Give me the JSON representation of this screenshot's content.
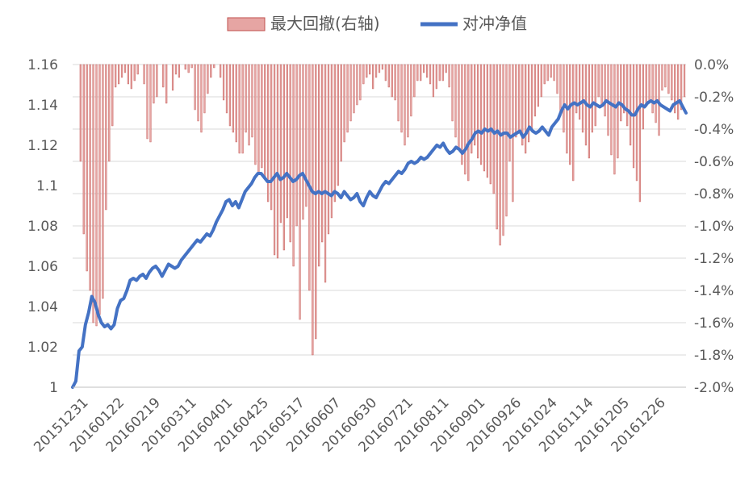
{
  "legend": {
    "drawdown_label": "最大回撤(右轴)",
    "nav_label": "对冲净值"
  },
  "colors": {
    "drawdown": "#c0504d",
    "drawdown_fill": "#e6a5a3",
    "nav_line": "#4472c4",
    "grid": "#d9d9d9",
    "text": "#595959"
  },
  "chart_data": {
    "type": "bar+line",
    "legend_position": "top-center",
    "grid": true,
    "x_axis": {
      "tick_labels": [
        "20151231",
        "20160122",
        "20160219",
        "20160311",
        "20160401",
        "20160425",
        "20160517",
        "20160607",
        "20160630",
        "20160721",
        "20160811",
        "20160901",
        "20160926",
        "20161024",
        "20161114",
        "20161205",
        "20161226"
      ]
    },
    "y_left": {
      "ylim": [
        1.0,
        1.16
      ],
      "tick_labels": [
        "1.16",
        "1.14",
        "1.12",
        "1.1",
        "1.08",
        "1.06",
        "1.04",
        "1.02",
        "1"
      ]
    },
    "y_right": {
      "ylim": [
        -2.0,
        0.0
      ],
      "unit": "%",
      "tick_labels": [
        "0.0%",
        "-0.2%",
        "-0.4%",
        "-0.6%",
        "-0.8%",
        "-1.0%",
        "-1.2%",
        "-1.4%",
        "-1.6%",
        "-1.8%",
        "-2.0%"
      ]
    },
    "series": [
      {
        "name": "对冲净值",
        "axis": "left",
        "type": "line",
        "values": [
          1.0,
          1.003,
          1.018,
          1.02,
          1.031,
          1.037,
          1.045,
          1.042,
          1.036,
          1.032,
          1.03,
          1.031,
          1.029,
          1.031,
          1.039,
          1.043,
          1.044,
          1.048,
          1.053,
          1.054,
          1.053,
          1.055,
          1.056,
          1.054,
          1.057,
          1.059,
          1.06,
          1.058,
          1.055,
          1.058,
          1.061,
          1.06,
          1.059,
          1.06,
          1.063,
          1.065,
          1.067,
          1.069,
          1.071,
          1.073,
          1.072,
          1.074,
          1.076,
          1.075,
          1.078,
          1.082,
          1.085,
          1.088,
          1.092,
          1.093,
          1.09,
          1.092,
          1.089,
          1.093,
          1.097,
          1.099,
          1.101,
          1.104,
          1.106,
          1.106,
          1.104,
          1.102,
          1.102,
          1.104,
          1.106,
          1.103,
          1.104,
          1.106,
          1.104,
          1.102,
          1.103,
          1.105,
          1.106,
          1.103,
          1.1,
          1.097,
          1.096,
          1.097,
          1.096,
          1.097,
          1.096,
          1.095,
          1.097,
          1.096,
          1.094,
          1.097,
          1.095,
          1.093,
          1.094,
          1.096,
          1.092,
          1.09,
          1.094,
          1.097,
          1.095,
          1.094,
          1.097,
          1.1,
          1.102,
          1.101,
          1.103,
          1.105,
          1.107,
          1.106,
          1.108,
          1.111,
          1.112,
          1.111,
          1.112,
          1.114,
          1.113,
          1.114,
          1.116,
          1.118,
          1.12,
          1.119,
          1.121,
          1.118,
          1.116,
          1.117,
          1.119,
          1.118,
          1.116,
          1.118,
          1.121,
          1.123,
          1.126,
          1.127,
          1.126,
          1.128,
          1.127,
          1.128,
          1.126,
          1.127,
          1.125,
          1.126,
          1.126,
          1.124,
          1.125,
          1.126,
          1.127,
          1.124,
          1.126,
          1.129,
          1.127,
          1.126,
          1.127,
          1.129,
          1.127,
          1.125,
          1.129,
          1.131,
          1.133,
          1.137,
          1.14,
          1.138,
          1.14,
          1.141,
          1.14,
          1.141,
          1.142,
          1.14,
          1.139,
          1.141,
          1.14,
          1.139,
          1.14,
          1.142,
          1.141,
          1.14,
          1.139,
          1.141,
          1.14,
          1.138,
          1.137,
          1.135,
          1.135,
          1.138,
          1.14,
          1.139,
          1.141,
          1.142,
          1.141,
          1.142,
          1.14,
          1.139,
          1.138,
          1.137,
          1.14,
          1.141,
          1.142,
          1.139,
          1.136
        ]
      },
      {
        "name": "最大回撤(右轴)",
        "axis": "right",
        "type": "bar",
        "unit": "%",
        "values": [
          0,
          0,
          -0.6,
          -1.05,
          -1.28,
          -1.4,
          -1.6,
          -1.62,
          -1.55,
          -1.45,
          -0.9,
          -0.6,
          -0.38,
          -0.14,
          -0.12,
          -0.08,
          -0.05,
          -0.12,
          -0.15,
          -0.1,
          -0.06,
          0,
          -0.12,
          -0.46,
          -0.48,
          -0.24,
          -0.2,
          0,
          -0.14,
          -0.24,
          0,
          -0.16,
          -0.06,
          -0.08,
          0,
          -0.03,
          -0.05,
          -0.02,
          -0.28,
          -0.35,
          -0.42,
          -0.3,
          -0.18,
          -0.08,
          -0.02,
          0,
          -0.08,
          -0.22,
          -0.3,
          -0.38,
          -0.42,
          -0.48,
          -0.55,
          -0.55,
          -0.42,
          -0.5,
          -0.45,
          -0.62,
          -0.68,
          -0.64,
          -0.7,
          -0.85,
          -0.9,
          -1.18,
          -1.2,
          -0.98,
          -1.15,
          -0.95,
          -1.1,
          -1.25,
          -1.0,
          -1.58,
          -0.96,
          -0.88,
          -1.4,
          -1.8,
          -1.7,
          -1.25,
          -1.1,
          -1.35,
          -1.05,
          -0.95,
          -0.85,
          -0.75,
          -0.6,
          -0.48,
          -0.42,
          -0.35,
          -0.3,
          -0.25,
          -0.22,
          -0.12,
          -0.08,
          -0.06,
          -0.15,
          -0.08,
          -0.05,
          -0.03,
          -0.1,
          -0.14,
          -0.2,
          -0.22,
          -0.35,
          -0.42,
          -0.5,
          -0.45,
          -0.32,
          -0.2,
          -0.1,
          -0.1,
          -0.05,
          -0.08,
          -0.12,
          -0.2,
          -0.15,
          -0.1,
          -0.1,
          -0.05,
          -0.14,
          -0.35,
          -0.45,
          -0.52,
          -0.62,
          -0.68,
          -0.72,
          -0.55,
          -0.5,
          -0.58,
          -0.62,
          -0.66,
          -0.7,
          -0.74,
          -0.8,
          -1.02,
          -1.12,
          -1.06,
          -0.94,
          -0.6,
          -0.85,
          -0.45,
          -0.42,
          -0.5,
          -0.55,
          -0.48,
          -0.4,
          -0.32,
          -0.26,
          -0.2,
          -0.12,
          -0.1,
          -0.08,
          -0.1,
          -0.18,
          -0.32,
          -0.42,
          -0.55,
          -0.62,
          -0.72,
          -0.3,
          -0.34,
          -0.42,
          -0.5,
          -0.58,
          -0.42,
          -0.38,
          -0.2,
          -0.26,
          -0.32,
          -0.44,
          -0.56,
          -0.68,
          -0.58,
          -0.35,
          -0.3,
          -0.38,
          -0.5,
          -0.64,
          -0.72,
          -0.85,
          -0.4,
          -0.26,
          -0.24,
          -0.3,
          -0.36,
          -0.44,
          -0.16,
          -0.14,
          -0.18,
          -0.22,
          -0.3,
          -0.34,
          -0.28,
          -0.2
        ]
      }
    ]
  }
}
